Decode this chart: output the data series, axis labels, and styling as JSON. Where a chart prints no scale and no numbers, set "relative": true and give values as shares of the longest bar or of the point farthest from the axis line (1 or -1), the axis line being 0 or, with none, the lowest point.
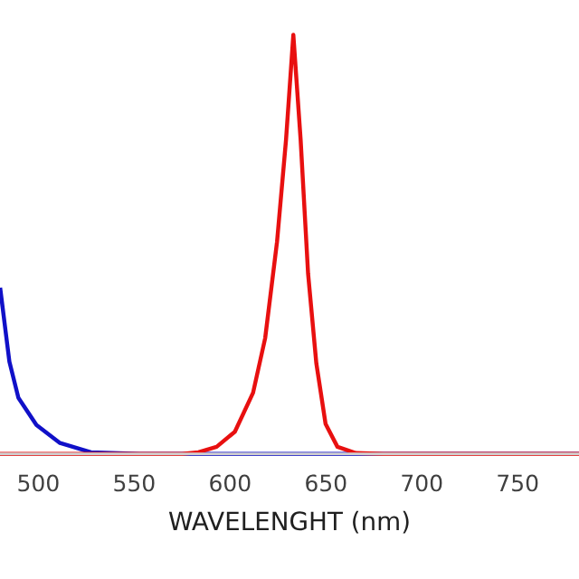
{
  "chart_data": {
    "type": "line",
    "relative": true,
    "xlabel": "WAVELENGHT (nm)",
    "xlim": [
      480,
      782
    ],
    "xticks": [
      500,
      550,
      600,
      650,
      700,
      750
    ],
    "grid": false,
    "legend": false,
    "series": [
      {
        "color": "#1010c8",
        "x": [
          480.2,
          484.9,
          489.6,
          499,
          511.3,
          527.4,
          552.8,
          600,
          650,
          700,
          782
        ],
        "values": [
          0.392,
          0.22,
          0.134,
          0.069,
          0.026,
          0.004,
          0,
          0,
          0,
          0,
          0
        ]
      },
      {
        "color": "#e81010",
        "x": [
          480,
          550,
          575,
          583.5,
          593,
          602.5,
          612,
          618.3,
          624.5,
          629.2,
          633,
          636.8,
          640.7,
          645,
          649.8,
          656,
          665.6,
          680,
          782
        ],
        "values": [
          0,
          0,
          0,
          0.004,
          0.017,
          0.053,
          0.146,
          0.276,
          0.506,
          0.75,
          1,
          0.75,
          0.43,
          0.216,
          0.072,
          0.017,
          0.002,
          0,
          0
        ]
      }
    ]
  }
}
